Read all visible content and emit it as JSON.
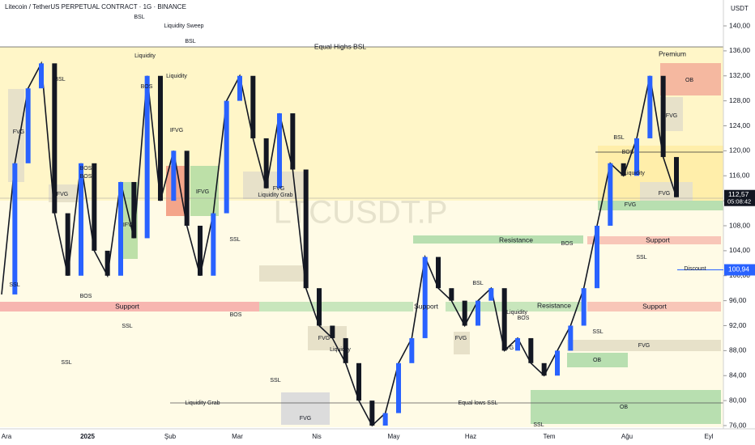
{
  "chart_data": {
    "type": "candlestick-line",
    "title": "Litecoin / TetherUS PERPETUAL CONTRACT · 1G · BINANCE",
    "currency": "USDT",
    "watermark": "LTCUSDT.P",
    "series": [
      {
        "name": "LTCUSDT.P",
        "color": "#131722",
        "values": [
          97,
          118,
          130,
          134,
          110,
          100,
          118,
          104,
          100,
          115,
          106,
          132,
          112,
          120,
          108,
          100,
          110,
          128,
          132,
          122,
          114,
          126,
          117,
          98,
          92,
          90,
          86,
          80,
          76,
          78,
          86,
          90,
          103,
          98,
          96,
          92,
          96,
          98,
          88,
          90,
          86,
          84,
          88,
          92,
          98,
          108,
          118,
          116,
          122,
          132,
          119,
          112.57
        ]
      }
    ],
    "ylim": [
      76,
      140
    ],
    "yticks": [
      {
        "value": 76,
        "label": "76,00"
      },
      {
        "value": 80,
        "label": "80,00"
      },
      {
        "value": 84,
        "label": "84,00"
      },
      {
        "value": 88,
        "label": "88,00"
      },
      {
        "value": 92,
        "label": "92,00"
      },
      {
        "value": 96,
        "label": "96,00"
      },
      {
        "value": 100,
        "label": "100,00"
      },
      {
        "value": 104,
        "label": "104,00"
      },
      {
        "value": 108,
        "label": "108,00"
      },
      {
        "value": 112,
        "label": "112,00"
      },
      {
        "value": 116,
        "label": "116,00"
      },
      {
        "value": 120,
        "label": "120,00"
      },
      {
        "value": 124,
        "label": "124,00"
      },
      {
        "value": 128,
        "label": "128,00"
      },
      {
        "value": 132,
        "label": "132,00"
      },
      {
        "value": 136,
        "label": "136,00"
      },
      {
        "value": 140,
        "label": "140,00"
      }
    ],
    "xlabels": [
      "Ara",
      "2025",
      "Şub",
      "Mar",
      "Nis",
      "May",
      "Haz",
      "Tem",
      "Ağu",
      "Eyl"
    ],
    "last_price": {
      "value": 112.57,
      "label": "112,57",
      "countdown": "05:08:42"
    },
    "marker_price": {
      "value": 100.94,
      "label": "100,94"
    },
    "annotations": [
      "Equal Highs BSL",
      "Premium",
      "OB",
      "FVG",
      "FVG",
      "BSL",
      "BOS",
      "Liquidity",
      "FVG",
      "Support",
      "SSL",
      "Discount",
      "Support",
      "FVG",
      "OB",
      "OB",
      "Resistance",
      "BOS",
      "Support",
      "Resistance",
      "Support",
      "BSL",
      "Liquidity",
      "BOS",
      "SSL",
      "Equal lows SSL",
      "SSL",
      "FVG",
      "FVG",
      "Liquidity",
      "FVG",
      "SSL",
      "Liquidity Grab",
      "FVG",
      "Liquidity Grab",
      "FVG",
      "IFVG",
      "IFVG",
      "FVG",
      "FVG",
      "IFVG",
      "Liquidity Sweep",
      "BSL",
      "BSL",
      "Liquidity",
      "Liquidity",
      "BOS",
      "BOS",
      "BSL",
      "BOS",
      "SSL",
      "SSL",
      "SSL",
      "BOS",
      "SSL",
      "BOS"
    ]
  }
}
